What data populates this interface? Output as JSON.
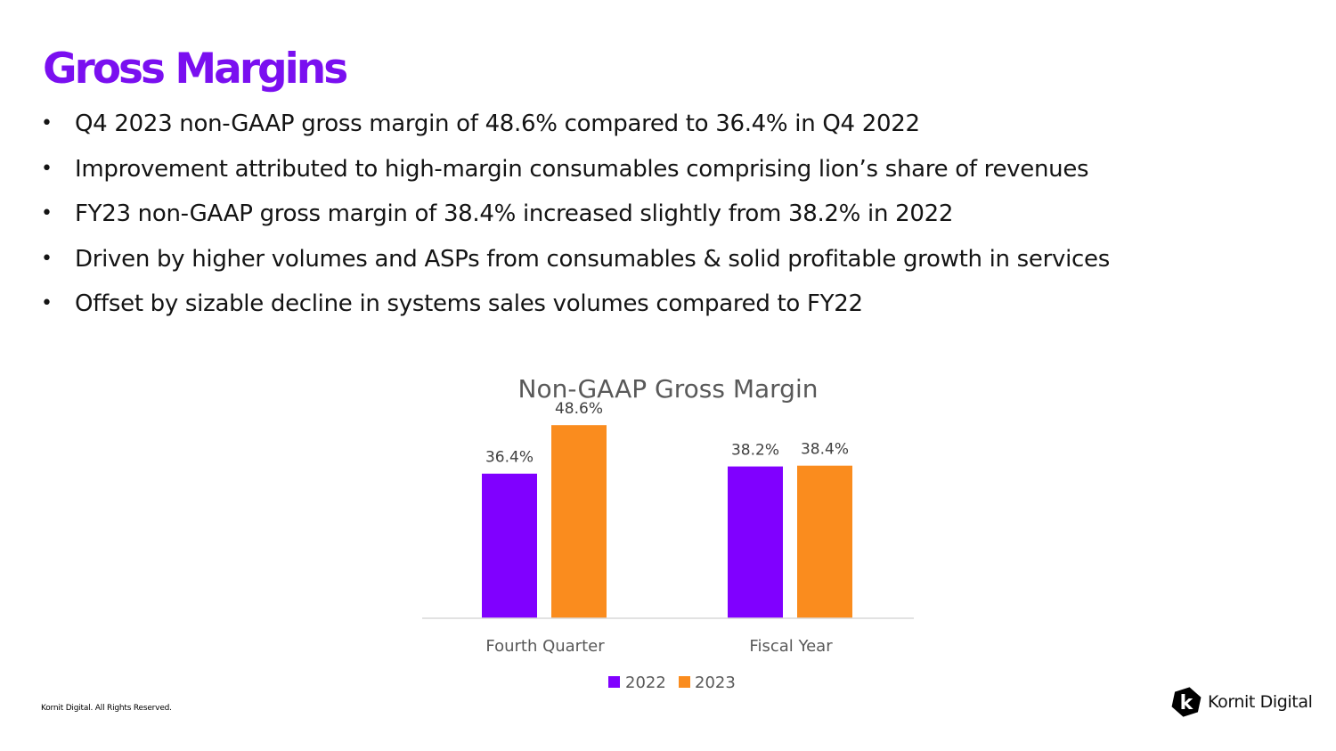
{
  "colors": {
    "title": "#7a0ff0",
    "series_2022": "#8000ff",
    "series_2023": "#fa8c1e",
    "chart_title": "#595959",
    "axis_line": "#d9d9d9"
  },
  "slide": {
    "title": "Gross Margins",
    "bullets": [
      "Q4 2023 non-GAAP gross margin of 48.6% compared to 36.4% in Q4 2022",
      "Improvement attributed to high-margin consumables comprising lion’s share of revenues",
      "FY23 non-GAAP gross margin of 38.4% increased slightly from 38.2% in 2022",
      "Driven by higher volumes and ASPs from consumables & solid profitable growth in services",
      "Offset by sizable decline in systems sales volumes compared to FY22"
    ],
    "footer": "Kornit Digital. All Rights Reserved.",
    "logo_text": "Kornit Digital",
    "logo_glyph": "k"
  },
  "chart_data": {
    "type": "bar",
    "title": "Non-GAAP Gross Margin",
    "categories": [
      "Fourth Quarter",
      "Fiscal Year"
    ],
    "series": [
      {
        "name": "2022",
        "values": [
          36.4,
          38.2
        ],
        "labels": [
          "36.4%",
          "38.2%"
        ]
      },
      {
        "name": "2023",
        "values": [
          48.6,
          38.4
        ],
        "labels": [
          "48.6%",
          "38.4%"
        ]
      }
    ],
    "xlabel": "",
    "ylabel": "",
    "ylim": [
      0,
      50
    ],
    "grid": false,
    "legend": "bottom"
  }
}
